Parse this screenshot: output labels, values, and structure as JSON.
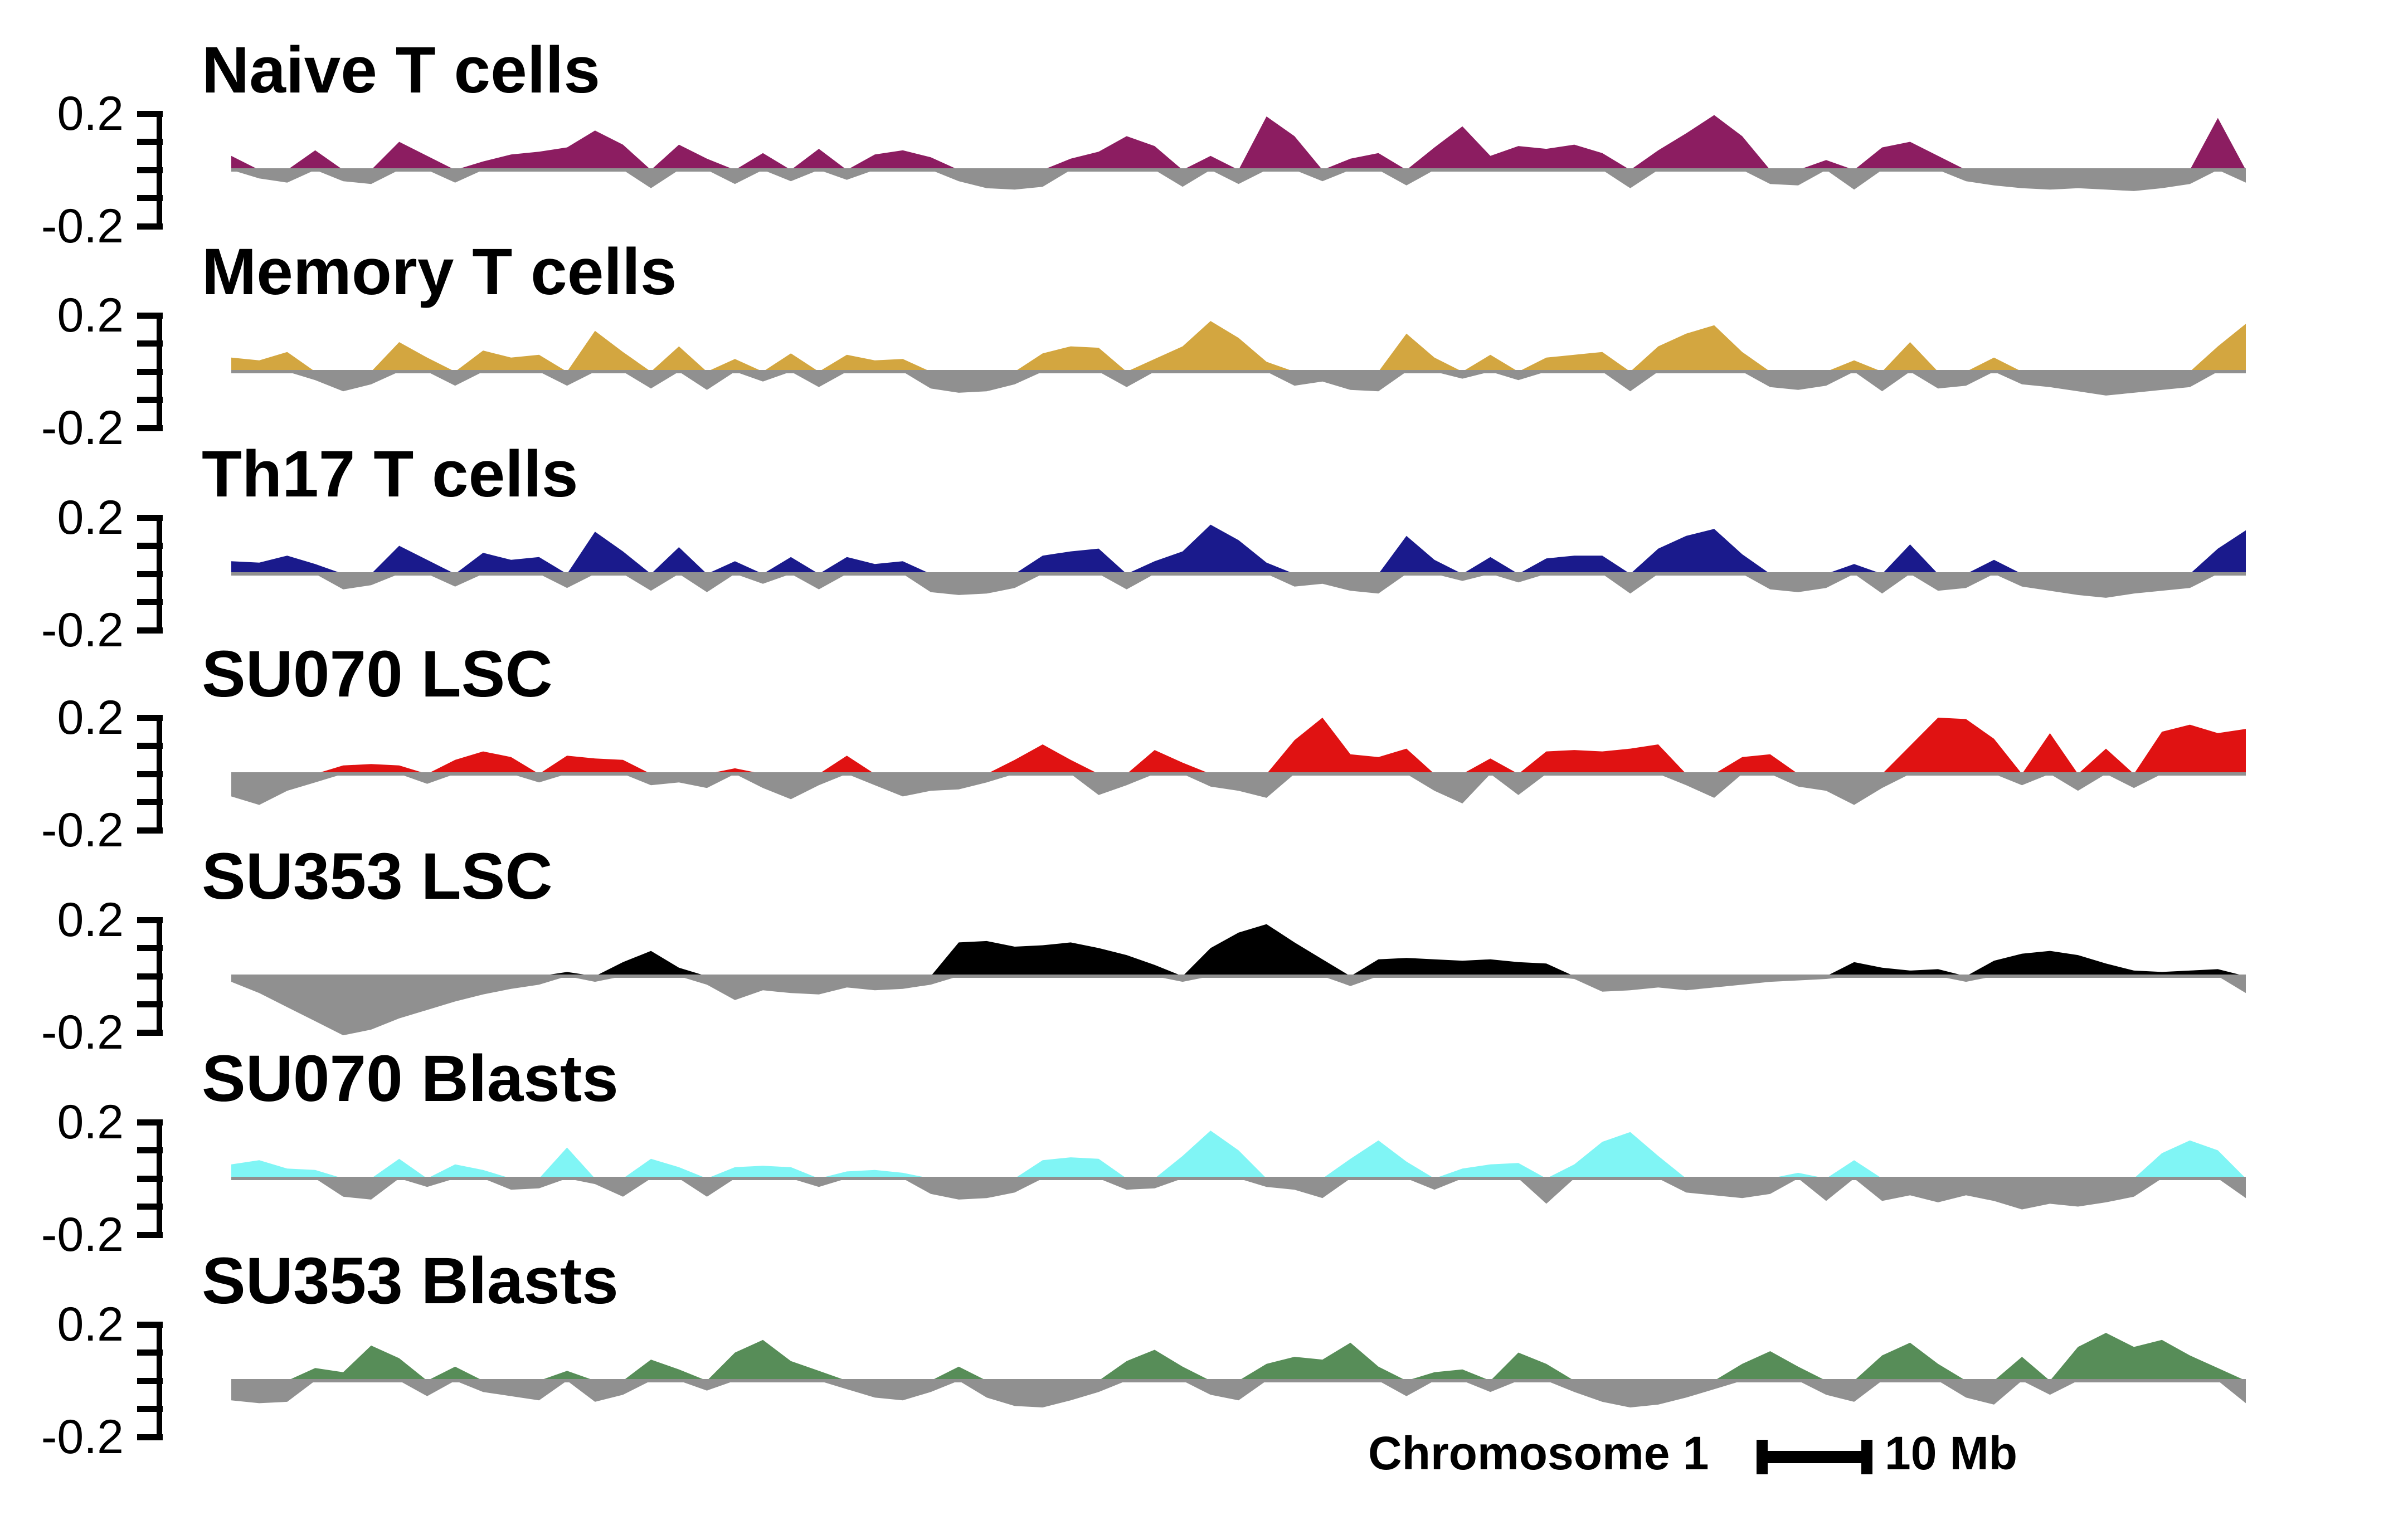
{
  "figure": {
    "footer_label": "Chromosome 1",
    "scale_bar_label": "10 Mb"
  },
  "chart_data": {
    "type": "area",
    "title": "",
    "xlabel": "Chromosome 1",
    "ylabel": "",
    "ylim": [
      -0.2,
      0.2
    ],
    "yticks": [
      0.2,
      0.1,
      0,
      -0.1,
      -0.2
    ],
    "ytick_top_label": "0.2",
    "ytick_bottom_label": "-0.2",
    "grid": false,
    "legend_position": "none",
    "scale_bar": {
      "label": "10 Mb",
      "span_mb": 10
    },
    "negative_color": "#909090",
    "baseline_color": "#909090",
    "n_points": 73,
    "series": [
      {
        "name": "Naive T cells",
        "color": "#8C1D61",
        "values": [
          0.05,
          -0.03,
          -0.045,
          0.07,
          -0.04,
          -0.05,
          0.1,
          0.05,
          -0.045,
          0.03,
          0.055,
          0.065,
          0.08,
          0.14,
          0.09,
          -0.065,
          0.09,
          0.04,
          -0.05,
          0.06,
          -0.04,
          0.075,
          -0.035,
          0.055,
          0.07,
          0.045,
          -0.04,
          -0.065,
          -0.07,
          -0.06,
          0.04,
          0.065,
          0.12,
          0.085,
          -0.06,
          0.05,
          -0.05,
          0.19,
          0.12,
          -0.04,
          0.04,
          0.06,
          -0.055,
          0.08,
          0.155,
          0.05,
          0.085,
          0.075,
          0.09,
          0.06,
          -0.065,
          0.07,
          0.13,
          0.195,
          0.12,
          -0.05,
          -0.055,
          0.035,
          -0.07,
          0.08,
          0.1,
          0.05,
          -0.04,
          -0.055,
          -0.065,
          -0.07,
          -0.065,
          -0.07,
          -0.075,
          -0.065,
          -0.05,
          0.185,
          -0.045
        ]
      },
      {
        "name": "Memory T cells",
        "color": "#D3A640",
        "values": [
          0.05,
          0.04,
          0.07,
          -0.03,
          -0.07,
          -0.045,
          0.105,
          0.05,
          -0.05,
          0.075,
          0.05,
          0.06,
          -0.05,
          0.145,
          0.07,
          -0.06,
          0.09,
          -0.065,
          0.045,
          -0.035,
          0.065,
          -0.055,
          0.06,
          0.04,
          0.045,
          -0.06,
          -0.075,
          -0.07,
          -0.045,
          0.065,
          0.09,
          0.085,
          -0.055,
          0.045,
          0.09,
          0.18,
          0.12,
          0.035,
          -0.05,
          -0.035,
          -0.065,
          -0.07,
          0.135,
          0.05,
          -0.025,
          0.06,
          -0.03,
          0.05,
          0.06,
          0.07,
          -0.07,
          0.09,
          0.135,
          0.165,
          0.07,
          -0.055,
          -0.065,
          -0.05,
          0.04,
          -0.07,
          0.105,
          -0.06,
          -0.05,
          0.05,
          -0.045,
          -0.055,
          -0.07,
          -0.085,
          -0.075,
          -0.065,
          -0.055,
          0.09,
          0.17
        ]
      },
      {
        "name": "Th17 T cells",
        "color": "#1A1A8C",
        "values": [
          0.045,
          0.04,
          0.065,
          0.035,
          -0.055,
          -0.04,
          0.1,
          0.05,
          -0.045,
          0.075,
          0.05,
          0.06,
          -0.05,
          0.15,
          0.08,
          -0.06,
          0.095,
          -0.065,
          0.045,
          -0.035,
          0.06,
          -0.055,
          0.06,
          0.035,
          0.045,
          -0.065,
          -0.075,
          -0.07,
          -0.05,
          0.065,
          0.08,
          0.09,
          -0.055,
          0.045,
          0.08,
          0.175,
          0.12,
          0.04,
          -0.045,
          -0.035,
          -0.06,
          -0.07,
          0.135,
          0.05,
          -0.025,
          0.06,
          -0.03,
          0.055,
          0.065,
          0.065,
          -0.07,
          0.09,
          0.135,
          0.16,
          0.07,
          -0.055,
          -0.065,
          -0.05,
          0.035,
          -0.07,
          0.105,
          -0.06,
          -0.05,
          0.05,
          -0.045,
          -0.06,
          -0.075,
          -0.085,
          -0.07,
          -0.06,
          -0.05,
          0.09,
          0.155
        ]
      },
      {
        "name": "SU070 LSC",
        "color": "#E01212",
        "values": [
          -0.08,
          -0.11,
          -0.06,
          -0.03,
          0.03,
          0.035,
          0.03,
          -0.035,
          0.05,
          0.08,
          0.06,
          -0.03,
          0.065,
          0.055,
          0.05,
          -0.04,
          -0.03,
          -0.05,
          0.02,
          -0.05,
          -0.09,
          -0.04,
          0.065,
          -0.04,
          -0.08,
          -0.06,
          -0.055,
          -0.03,
          0.05,
          0.105,
          0.05,
          -0.075,
          -0.04,
          0.085,
          0.04,
          -0.045,
          -0.06,
          -0.085,
          0.12,
          0.2,
          0.07,
          0.06,
          0.09,
          -0.06,
          -0.105,
          0.055,
          -0.075,
          0.08,
          0.085,
          0.08,
          0.09,
          0.105,
          -0.04,
          -0.085,
          0.06,
          0.07,
          -0.045,
          -0.06,
          -0.11,
          -0.05,
          0.1,
          0.2,
          0.195,
          0.125,
          -0.04,
          0.145,
          -0.06,
          0.09,
          -0.05,
          0.15,
          0.175,
          0.145,
          0.16
        ]
      },
      {
        "name": "SU353 LSC",
        "color": "#000000",
        "values": [
          -0.02,
          -0.06,
          -0.11,
          -0.16,
          -0.21,
          -0.19,
          -0.15,
          -0.12,
          -0.09,
          -0.065,
          -0.045,
          -0.03,
          0.015,
          -0.02,
          0.05,
          0.09,
          0.03,
          -0.03,
          -0.085,
          -0.05,
          -0.06,
          -0.065,
          -0.04,
          -0.05,
          -0.045,
          -0.03,
          0.12,
          0.125,
          0.105,
          0.11,
          0.12,
          0.1,
          0.075,
          0.04,
          -0.02,
          0.1,
          0.155,
          0.185,
          0.12,
          0.06,
          -0.035,
          0.06,
          0.065,
          0.06,
          0.055,
          0.06,
          0.05,
          0.045,
          -0.01,
          -0.055,
          -0.05,
          -0.04,
          -0.05,
          -0.04,
          -0.03,
          -0.02,
          -0.015,
          -0.01,
          0.05,
          0.03,
          0.02,
          0.025,
          -0.02,
          0.055,
          0.08,
          0.09,
          0.075,
          0.045,
          0.02,
          0.015,
          0.02,
          0.025,
          -0.06
        ]
      },
      {
        "name": "SU070 Blasts",
        "color": "#80F5F5",
        "values": [
          0.05,
          0.065,
          0.035,
          0.03,
          -0.065,
          -0.075,
          0.07,
          -0.03,
          0.05,
          0.03,
          -0.04,
          -0.035,
          0.11,
          -0.02,
          -0.065,
          0.07,
          0.04,
          -0.065,
          0.04,
          0.045,
          0.04,
          -0.03,
          0.025,
          0.03,
          0.02,
          -0.055,
          -0.075,
          -0.07,
          -0.05,
          0.065,
          0.075,
          0.07,
          -0.04,
          -0.035,
          0.08,
          0.17,
          0.1,
          -0.03,
          -0.04,
          -0.07,
          0.07,
          0.135,
          0.06,
          -0.04,
          0.035,
          0.05,
          0.055,
          -0.09,
          0.05,
          0.13,
          0.165,
          0.08,
          -0.05,
          -0.06,
          -0.07,
          -0.055,
          0.02,
          -0.08,
          0.065,
          -0.08,
          -0.06,
          -0.085,
          -0.06,
          -0.08,
          -0.11,
          -0.09,
          -0.1,
          -0.085,
          -0.065,
          0.09,
          0.135,
          0.1,
          -0.07
        ]
      },
      {
        "name": "SU353 Blasts",
        "color": "#578D58",
        "values": [
          -0.07,
          -0.08,
          -0.075,
          0.045,
          0.03,
          0.125,
          0.08,
          -0.055,
          0.05,
          -0.04,
          -0.055,
          -0.07,
          0.035,
          -0.075,
          -0.05,
          0.075,
          0.04,
          -0.035,
          0.1,
          0.145,
          0.07,
          0.035,
          -0.03,
          -0.06,
          -0.07,
          -0.04,
          0.05,
          -0.06,
          -0.09,
          -0.095,
          -0.07,
          -0.04,
          0.07,
          0.11,
          0.05,
          -0.05,
          -0.07,
          0.06,
          0.085,
          0.075,
          0.135,
          0.05,
          -0.055,
          0.03,
          0.04,
          -0.04,
          0.1,
          0.06,
          -0.04,
          -0.075,
          -0.095,
          -0.085,
          -0.06,
          -0.03,
          0.06,
          0.105,
          0.05,
          -0.05,
          -0.075,
          0.09,
          0.135,
          0.06,
          -0.06,
          -0.085,
          0.085,
          -0.05,
          0.12,
          0.17,
          0.12,
          0.145,
          0.09,
          0.045,
          -0.08
        ]
      }
    ]
  }
}
